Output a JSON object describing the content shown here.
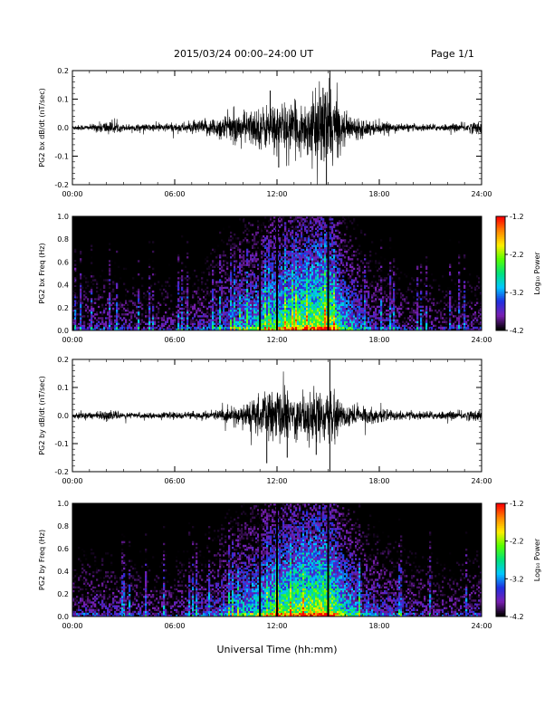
{
  "header": {
    "title": "2015/03/24  00:00–24:00 UT",
    "page": "Page 1/1"
  },
  "x_axis_title": "Universal Time (hh:mm)",
  "colorbar": {
    "label": "Log₁₀ Power",
    "ticks": [
      "-1.2",
      "-2.2",
      "-3.2",
      "-4.2"
    ],
    "range": [
      -4.2,
      -1.2
    ],
    "colors": [
      "#000000",
      "#7a1fb3",
      "#1f2fe0",
      "#00c8ff",
      "#00e27a",
      "#55ff00",
      "#ffee00",
      "#ff8800",
      "#ff0000"
    ]
  },
  "chart_data": [
    {
      "type": "line",
      "title": "",
      "ylabel": "PG2 bx dB/dt (nT/sec)",
      "xlabel": "",
      "xlim": [
        "00:00",
        "24:00"
      ],
      "ylim": [
        -0.2,
        0.2
      ],
      "xticks": [
        "00:00",
        "06:00",
        "12:00",
        "18:00",
        "24:00"
      ],
      "yticks": [
        "0.2",
        "0.1",
        "0.0",
        "-0.1",
        "-0.2"
      ],
      "x_hours": [
        0,
        1,
        2,
        3,
        4,
        5,
        6,
        7,
        8,
        9,
        10,
        11,
        12,
        13,
        14,
        15,
        16,
        17,
        18,
        19,
        20,
        21,
        22,
        23,
        24
      ],
      "envelope": [
        0.012,
        0.012,
        0.03,
        0.015,
        0.015,
        0.018,
        0.02,
        0.025,
        0.04,
        0.06,
        0.07,
        0.09,
        0.11,
        0.1,
        0.13,
        0.2,
        0.06,
        0.04,
        0.025,
        0.018,
        0.015,
        0.015,
        0.015,
        0.02,
        0.03
      ],
      "spikes": [
        [
          14.7,
          0.14
        ],
        [
          14.9,
          -0.2
        ],
        [
          15.1,
          0.2
        ],
        [
          12.1,
          -0.14
        ],
        [
          11.6,
          0.13
        ]
      ]
    },
    {
      "type": "heatmap",
      "title": "",
      "ylabel": "PG2 bx Freq (Hz)",
      "xlabel": "",
      "xlim": [
        "00:00",
        "24:00"
      ],
      "ylim": [
        0.0,
        1.0
      ],
      "xticks": [
        "00:00",
        "06:00",
        "12:00",
        "18:00",
        "24:00"
      ],
      "yticks": [
        "1.0",
        "0.8",
        "0.6",
        "0.4",
        "0.2",
        "0.0"
      ],
      "z_label": "Log₁₀ Power",
      "zlim": [
        -4.2,
        -1.2
      ],
      "activity_hours": [
        0,
        2,
        4,
        6,
        8,
        10,
        11,
        12,
        13,
        14,
        15,
        16,
        17,
        18,
        20,
        22,
        24
      ],
      "activity_level": [
        0.3,
        0.35,
        0.3,
        0.32,
        0.4,
        0.6,
        0.7,
        0.8,
        0.85,
        0.9,
        0.95,
        0.65,
        0.5,
        0.4,
        0.3,
        0.3,
        0.32
      ],
      "vertical_lines_hours": [
        11.0,
        12.0,
        15.0
      ]
    },
    {
      "type": "line",
      "title": "",
      "ylabel": "PG2 by dB/dt (nT/sec)",
      "xlabel": "",
      "xlim": [
        "00:00",
        "24:00"
      ],
      "ylim": [
        -0.2,
        0.2
      ],
      "xticks": [
        "00:00",
        "06:00",
        "12:00",
        "18:00",
        "24:00"
      ],
      "yticks": [
        "0.2",
        "0.1",
        "0.0",
        "-0.1",
        "-0.2"
      ],
      "x_hours": [
        0,
        1,
        2,
        3,
        4,
        5,
        6,
        7,
        8,
        9,
        10,
        11,
        12,
        13,
        14,
        15,
        16,
        17,
        18,
        19,
        20,
        21,
        22,
        23,
        24
      ],
      "envelope": [
        0.015,
        0.015,
        0.02,
        0.015,
        0.012,
        0.012,
        0.015,
        0.015,
        0.02,
        0.03,
        0.05,
        0.09,
        0.12,
        0.1,
        0.12,
        0.1,
        0.06,
        0.04,
        0.03,
        0.02,
        0.018,
        0.018,
        0.018,
        0.02,
        0.025
      ],
      "spikes": [
        [
          11.4,
          -0.17
        ],
        [
          12.6,
          -0.15
        ],
        [
          14.3,
          -0.14
        ],
        [
          15.1,
          -0.2
        ],
        [
          15.1,
          0.2
        ]
      ]
    },
    {
      "type": "heatmap",
      "title": "",
      "ylabel": "PG2 by Freq (Hz)",
      "xlabel": "",
      "xlim": [
        "00:00",
        "24:00"
      ],
      "ylim": [
        0.0,
        1.0
      ],
      "xticks": [
        "00:00",
        "06:00",
        "12:00",
        "18:00",
        "24:00"
      ],
      "yticks": [
        "1.0",
        "0.8",
        "0.6",
        "0.4",
        "0.2",
        "0.0"
      ],
      "z_label": "Log₁₀ Power",
      "zlim": [
        -4.2,
        -1.2
      ],
      "activity_hours": [
        0,
        2,
        4,
        6,
        8,
        10,
        11,
        12,
        13,
        14,
        15,
        16,
        17,
        18,
        20,
        22,
        24
      ],
      "activity_level": [
        0.35,
        0.35,
        0.32,
        0.32,
        0.42,
        0.62,
        0.72,
        0.82,
        0.88,
        0.92,
        0.95,
        0.7,
        0.55,
        0.45,
        0.35,
        0.32,
        0.35
      ],
      "vertical_lines_hours": [
        11.0,
        12.0,
        15.0
      ]
    }
  ]
}
